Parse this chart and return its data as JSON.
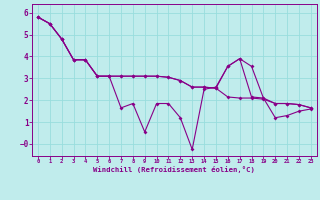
{
  "xlabel": "Windchill (Refroidissement éolien,°C)",
  "background_color": "#c0ecec",
  "line_color": "#880088",
  "grid_color": "#99dddd",
  "x_ticks": [
    0,
    1,
    2,
    3,
    4,
    5,
    6,
    7,
    8,
    9,
    10,
    11,
    12,
    13,
    14,
    15,
    16,
    17,
    18,
    19,
    20,
    21,
    22,
    23
  ],
  "y_ticks": [
    0,
    1,
    2,
    3,
    4,
    5,
    6
  ],
  "ylim": [
    -0.55,
    6.4
  ],
  "xlim": [
    -0.5,
    23.5
  ],
  "line1": [
    5.8,
    5.5,
    4.8,
    3.85,
    3.85,
    3.1,
    3.1,
    1.65,
    1.85,
    0.55,
    1.85,
    1.85,
    1.2,
    -0.25,
    2.5,
    2.6,
    3.55,
    3.9,
    2.15,
    2.1,
    1.2,
    1.3,
    1.5,
    1.6
  ],
  "line2": [
    5.8,
    5.5,
    4.8,
    3.85,
    3.85,
    3.1,
    3.1,
    3.1,
    3.1,
    3.1,
    3.1,
    3.05,
    2.9,
    2.6,
    2.6,
    2.55,
    2.15,
    2.1,
    2.1,
    2.05,
    1.85,
    1.85,
    1.8,
    1.65
  ],
  "line3": [
    5.8,
    5.5,
    4.8,
    3.85,
    3.85,
    3.1,
    3.1,
    3.1,
    3.1,
    3.1,
    3.1,
    3.05,
    2.9,
    2.6,
    2.6,
    2.55,
    3.55,
    3.9,
    3.55,
    2.1,
    1.85,
    1.85,
    1.8,
    1.65
  ]
}
